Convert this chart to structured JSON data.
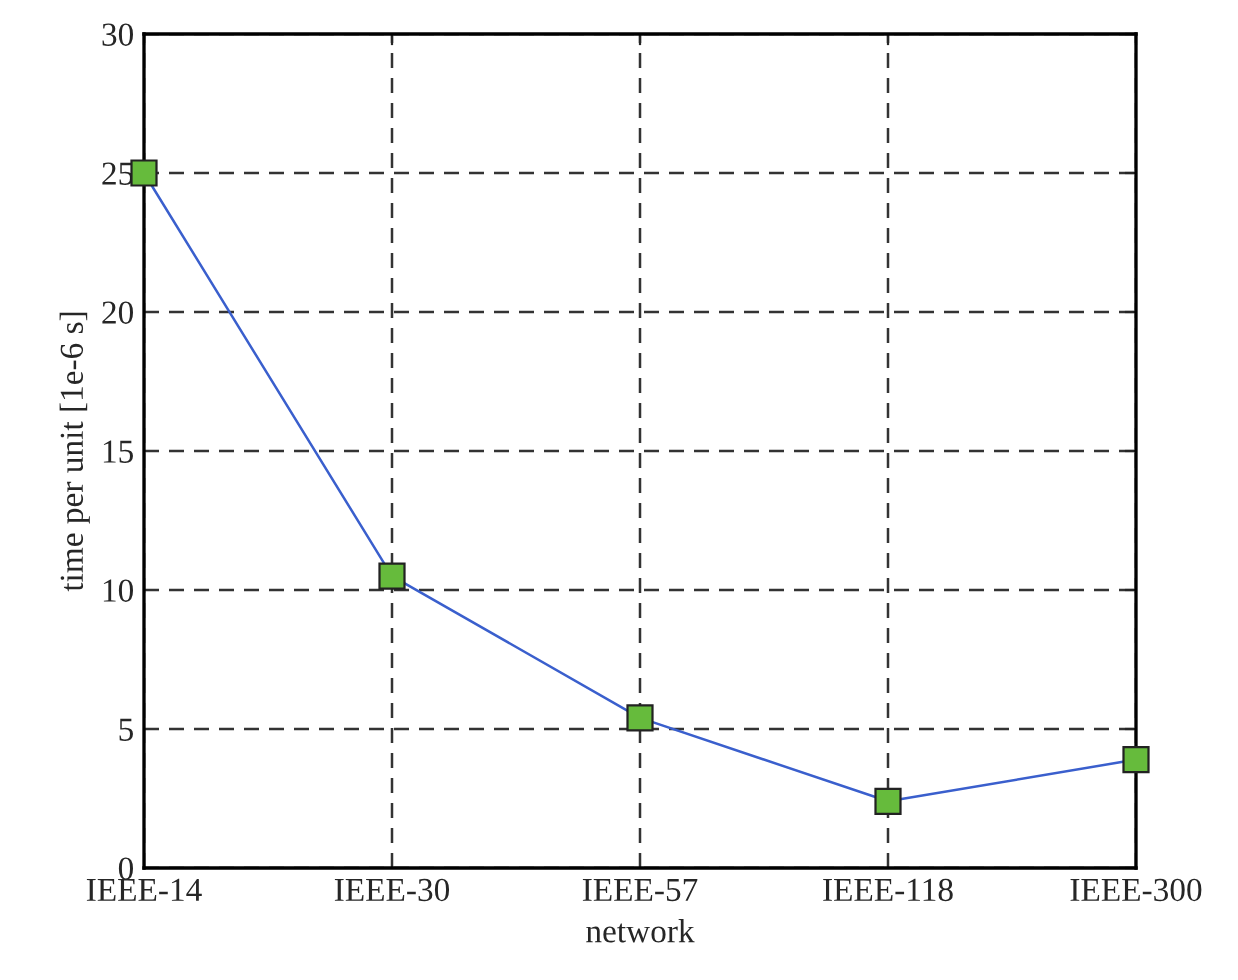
{
  "chart_data": {
    "type": "line",
    "xlabel": "network",
    "ylabel": "time per unit [1e-6 s]",
    "categories": [
      "IEEE-14",
      "IEEE-30",
      "IEEE-57",
      "IEEE-118",
      "IEEE-300"
    ],
    "series": [
      {
        "color": "#3a5fcd",
        "values": [
          25,
          10.5,
          5.4,
          2.4,
          3.9
        ]
      }
    ],
    "marker": "square",
    "line_style": "solid",
    "ylim": [
      0,
      30
    ],
    "yticks": [
      0,
      5,
      10,
      15,
      20,
      25,
      30
    ],
    "grid": true
  }
}
